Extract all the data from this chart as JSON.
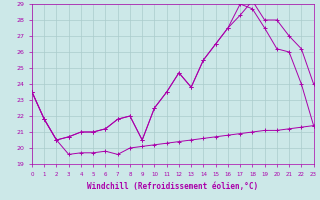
{
  "xlabel": "Windchill (Refroidissement éolien,°C)",
  "bg_color": "#cce8e8",
  "grid_color": "#aacccc",
  "line_color": "#aa00aa",
  "xmin": 0,
  "xmax": 23,
  "ymin": 19,
  "ymax": 29,
  "line1_x": [
    0,
    1,
    2,
    3,
    4,
    5,
    6,
    7,
    8,
    9,
    10,
    11,
    12,
    13,
    14,
    15,
    16,
    17,
    18,
    19,
    20,
    21,
    22,
    23
  ],
  "line1_y": [
    23.5,
    21.8,
    20.5,
    19.6,
    19.7,
    19.7,
    19.8,
    19.6,
    20.0,
    20.1,
    20.2,
    20.3,
    20.4,
    20.5,
    20.6,
    20.7,
    20.8,
    20.9,
    21.0,
    21.1,
    21.1,
    21.2,
    21.3,
    21.4
  ],
  "line2_x": [
    0,
    1,
    2,
    3,
    4,
    5,
    6,
    7,
    8,
    9,
    10,
    11,
    12,
    13,
    14,
    15,
    16,
    17,
    18,
    19,
    20,
    21,
    22,
    23
  ],
  "line2_y": [
    23.5,
    21.8,
    20.5,
    20.7,
    21.0,
    21.0,
    21.2,
    21.8,
    22.0,
    20.5,
    22.5,
    23.5,
    24.7,
    23.8,
    25.5,
    26.5,
    27.5,
    28.3,
    29.2,
    28.0,
    28.0,
    27.0,
    26.2,
    24.0
  ],
  "line3_x": [
    0,
    1,
    2,
    3,
    4,
    5,
    6,
    7,
    8,
    9,
    10,
    11,
    12,
    13,
    14,
    15,
    16,
    17,
    18,
    19,
    20,
    21,
    22,
    23
  ],
  "line3_y": [
    23.5,
    21.8,
    20.5,
    20.7,
    21.0,
    21.0,
    21.2,
    21.8,
    22.0,
    20.5,
    22.5,
    23.5,
    24.7,
    23.8,
    25.5,
    26.5,
    27.5,
    29.0,
    28.7,
    27.5,
    26.2,
    26.0,
    24.0,
    21.4
  ]
}
